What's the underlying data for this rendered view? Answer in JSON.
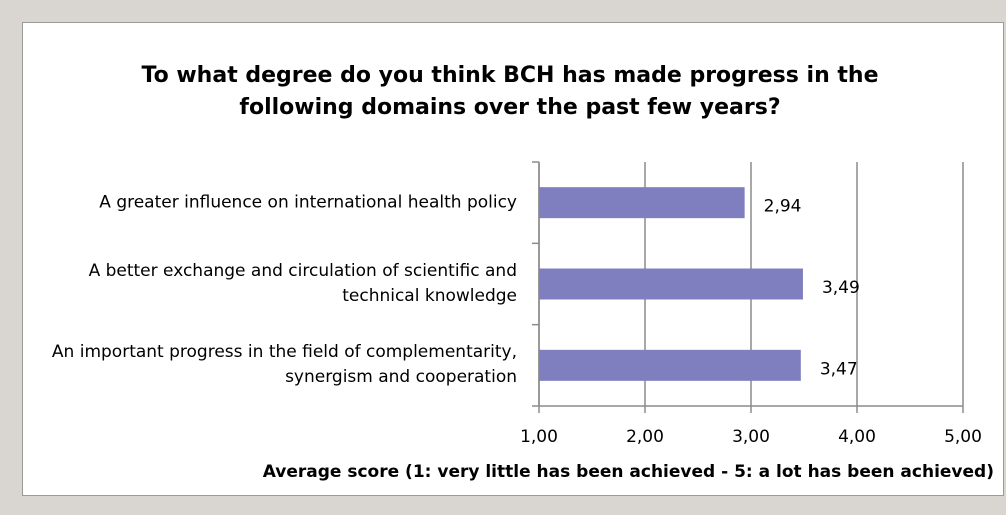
{
  "chart_data": {
    "type": "bar",
    "orientation": "horizontal",
    "title": "To what degree do you think BCH has made progress in the following domains over the past few years?",
    "x_label": "Average score (1: very little has been achieved - 5: a lot has been achieved)",
    "categories": [
      "A greater influence on international health policy",
      "A better exchange and circulation of scientific and technical knowledge",
      "An important progress in the field of complementarity, synergism and cooperation"
    ],
    "values": [
      2.94,
      3.49,
      3.47
    ],
    "value_labels": [
      "2,94",
      "3,49",
      "3,47"
    ],
    "color": "#7f7fbf",
    "xlim": [
      1,
      5
    ],
    "xticks": [
      {
        "value": 1,
        "label": "1,00"
      },
      {
        "value": 2,
        "label": "2,00"
      },
      {
        "value": 3,
        "label": "3,00"
      },
      {
        "value": 4,
        "label": "4,00"
      },
      {
        "value": 5,
        "label": "5,00"
      }
    ],
    "grid": true
  }
}
